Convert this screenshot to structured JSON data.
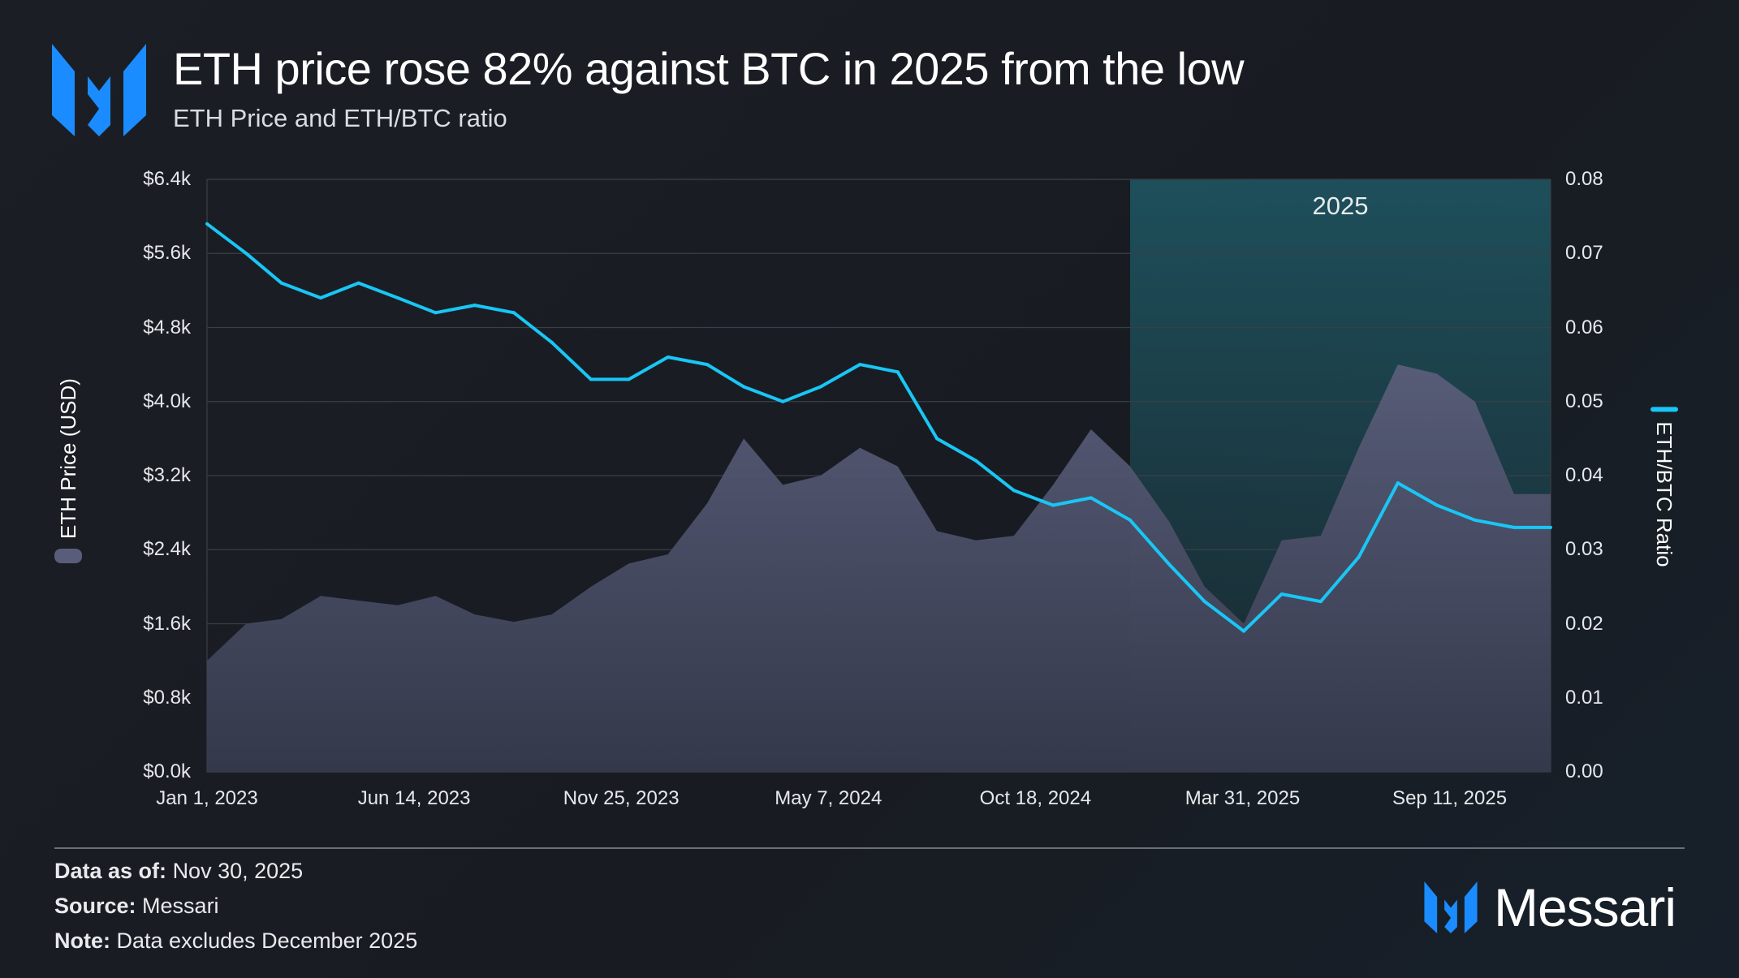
{
  "header": {
    "title": "ETH price rose 82% against BTC in 2025 from the low",
    "subtitle": "ETH Price and ETH/BTC ratio",
    "logo": "messari-logo"
  },
  "footer": {
    "data_as_of_label": "Data as of:",
    "data_as_of": "Nov 30, 2025",
    "source_label": "Source:",
    "source": "Messari",
    "note_label": "Note:",
    "note": "Data excludes December 2025",
    "brand": "Messari"
  },
  "colors": {
    "ratio_line": "#19c6f5",
    "price_area": "#5a5d7a",
    "highlight_2025": "#1e5561",
    "logo": "#1a8cff"
  },
  "chart_data": {
    "type": "area+line",
    "title": "ETH price rose 82% against BTC in 2025 from the low",
    "subtitle": "ETH Price and ETH/BTC ratio",
    "ylabel_left": "ETH Price (USD)",
    "ylabel_right": "ETH/BTC Ratio",
    "ylim_left": [
      0,
      6400
    ],
    "ylim_right": [
      0,
      0.08
    ],
    "yticks_left": [
      "$0.0k",
      "$0.8k",
      "$1.6k",
      "$2.4k",
      "$3.2k",
      "$4.0k",
      "$4.8k",
      "$5.6k",
      "$6.4k"
    ],
    "yticks_right": [
      "0.00",
      "0.01",
      "0.02",
      "0.03",
      "0.04",
      "0.05",
      "0.06",
      "0.07",
      "0.08"
    ],
    "xlim": [
      "2023-01-01",
      "2025-11-30"
    ],
    "xticks": [
      {
        "date": "2023-01-01",
        "label": "Jan 1, 2023"
      },
      {
        "date": "2023-06-14",
        "label": "Jun 14, 2023"
      },
      {
        "date": "2023-11-25",
        "label": "Nov 25, 2023"
      },
      {
        "date": "2024-05-07",
        "label": "May 7, 2024"
      },
      {
        "date": "2024-10-18",
        "label": "Oct 18, 2024"
      },
      {
        "date": "2025-03-31",
        "label": "Mar 31, 2025"
      },
      {
        "date": "2025-09-11",
        "label": "Sep 11, 2025"
      }
    ],
    "grid": true,
    "highlight": {
      "label": "2025",
      "start": "2025-01-01",
      "end": "2025-11-30"
    },
    "x": [
      "2023-01-01",
      "2023-02-01",
      "2023-03-01",
      "2023-04-01",
      "2023-05-01",
      "2023-06-01",
      "2023-07-01",
      "2023-08-01",
      "2023-09-01",
      "2023-10-01",
      "2023-11-01",
      "2023-12-01",
      "2024-01-01",
      "2024-02-01",
      "2024-03-01",
      "2024-04-01",
      "2024-05-01",
      "2024-06-01",
      "2024-07-01",
      "2024-08-01",
      "2024-09-01",
      "2024-10-01",
      "2024-11-01",
      "2024-12-01",
      "2025-01-01",
      "2025-02-01",
      "2025-03-01",
      "2025-04-01",
      "2025-05-01",
      "2025-06-01",
      "2025-07-01",
      "2025-08-01",
      "2025-09-01",
      "2025-10-01",
      "2025-11-01",
      "2025-11-30"
    ],
    "series": [
      {
        "name": "ETH Price (USD)",
        "type": "area",
        "axis": "left",
        "values": [
          1200,
          1600,
          1650,
          1900,
          1850,
          1800,
          1900,
          1700,
          1620,
          1700,
          2000,
          2250,
          2350,
          2900,
          3600,
          3100,
          3200,
          3500,
          3300,
          2600,
          2500,
          2550,
          3100,
          3700,
          3300,
          2700,
          2000,
          1600,
          2500,
          2550,
          3500,
          4400,
          4300,
          4000,
          3000,
          3000
        ]
      },
      {
        "name": "ETH/BTC Ratio",
        "type": "line",
        "axis": "right",
        "values": [
          0.074,
          0.07,
          0.066,
          0.064,
          0.066,
          0.064,
          0.062,
          0.063,
          0.062,
          0.058,
          0.053,
          0.053,
          0.056,
          0.055,
          0.052,
          0.05,
          0.052,
          0.055,
          0.054,
          0.045,
          0.042,
          0.038,
          0.036,
          0.037,
          0.034,
          0.028,
          0.023,
          0.019,
          0.024,
          0.023,
          0.029,
          0.039,
          0.036,
          0.034,
          0.033,
          0.033
        ]
      }
    ]
  }
}
